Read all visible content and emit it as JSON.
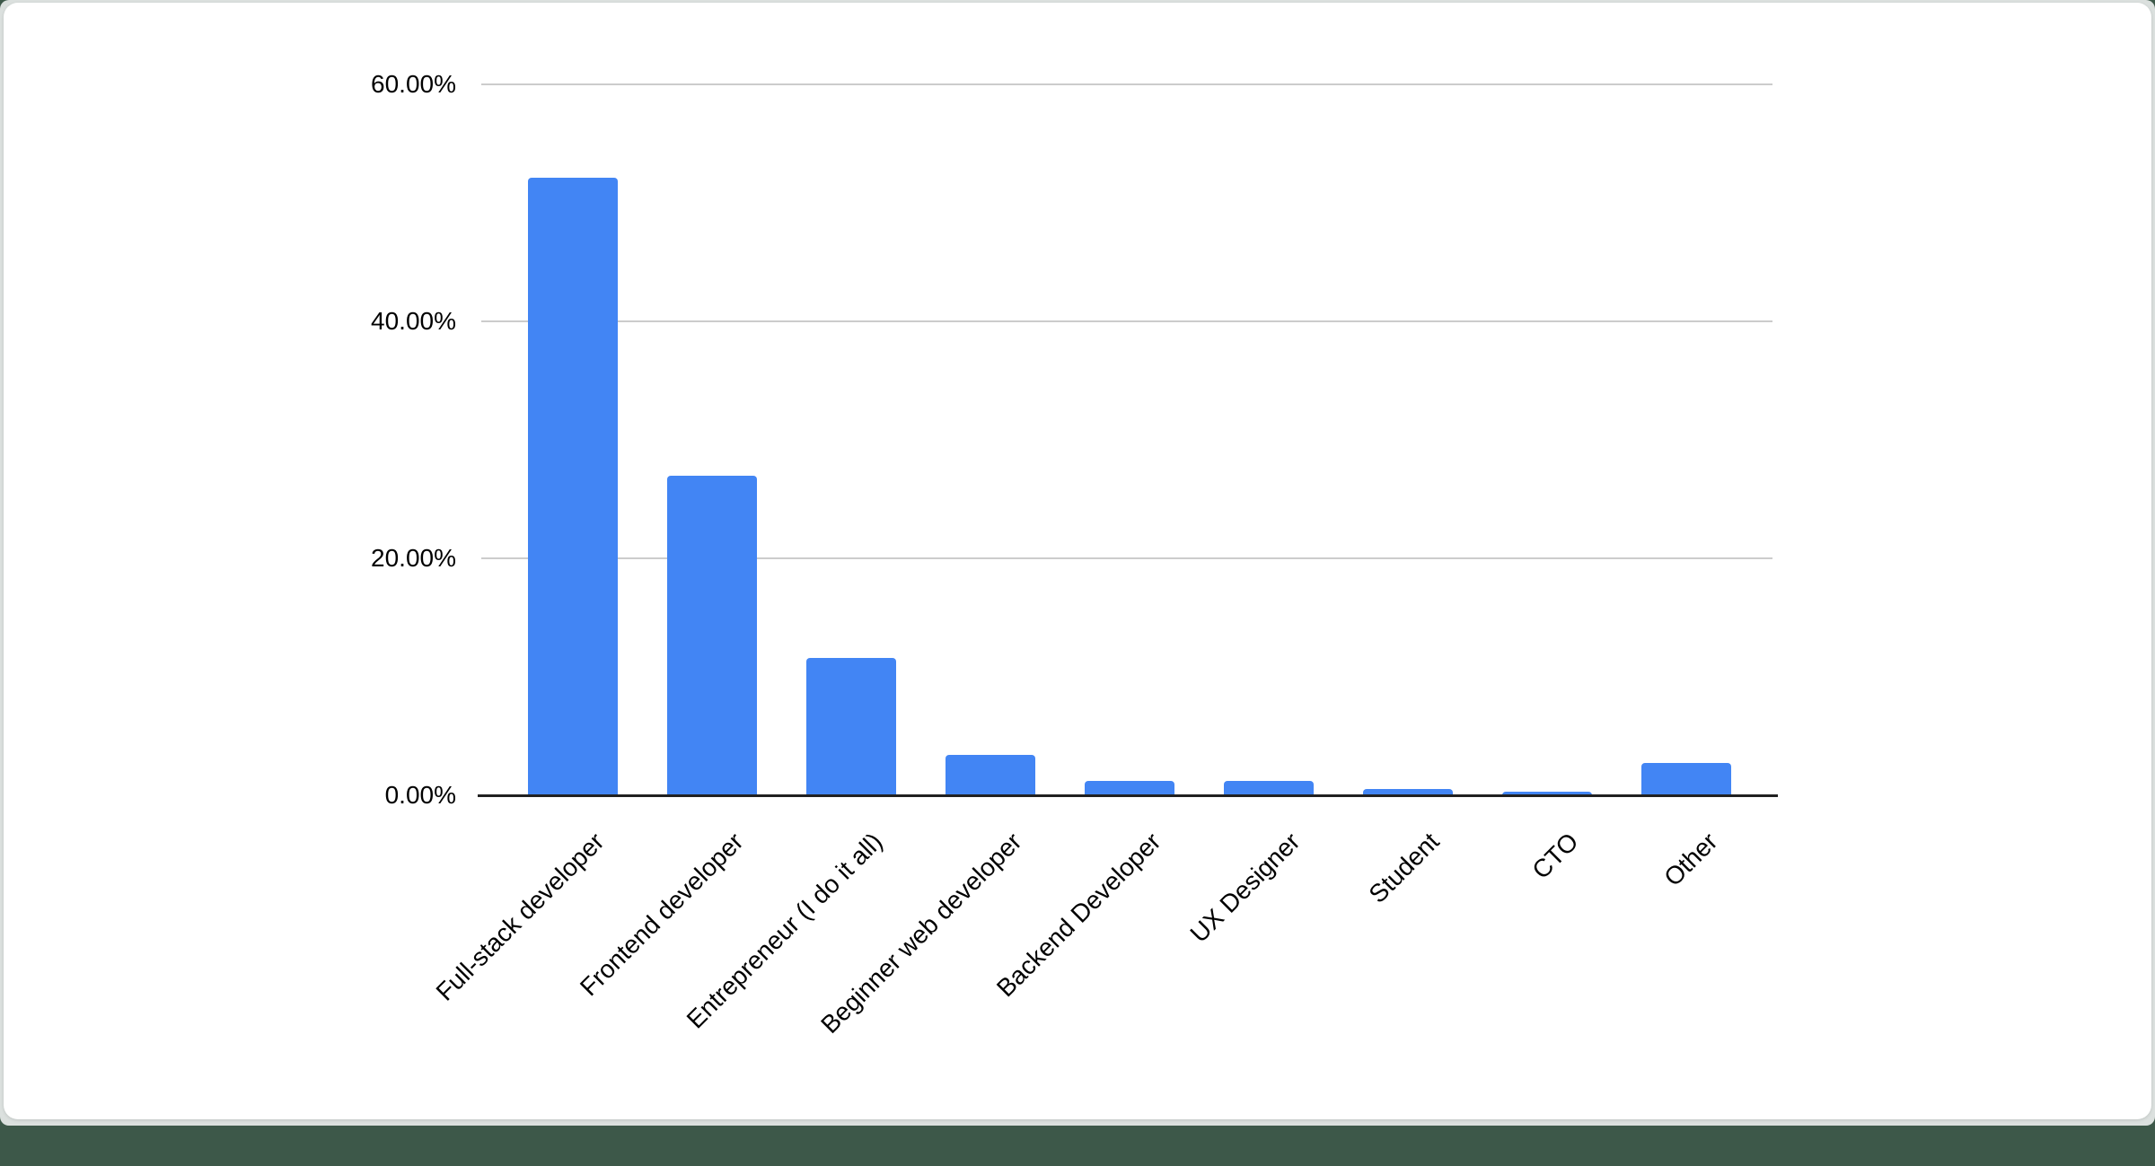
{
  "page": {
    "background_color": "#3d5849",
    "frame_color": "#dbe0de",
    "card_color": "#ffffff"
  },
  "chart_data": {
    "type": "bar",
    "title": "",
    "xlabel": "",
    "ylabel": "",
    "categories": [
      "Full-stack developer",
      "Frontend developer",
      "Entrepreneur (I do it all)",
      "Beginner web developer",
      "Backend Developer",
      "UX Designer",
      "Student",
      "CTO",
      "Other"
    ],
    "values": [
      52.1,
      27.0,
      11.6,
      3.4,
      1.2,
      1.2,
      0.5,
      0.3,
      2.7
    ],
    "value_unit": "%",
    "ylim": [
      0,
      60
    ],
    "yticks": [
      {
        "value": 60,
        "label": "60.00%"
      },
      {
        "value": 40,
        "label": "40.00%"
      },
      {
        "value": 20,
        "label": "20.00%"
      },
      {
        "value": 0,
        "label": "0.00%"
      }
    ],
    "grid": "horizontal",
    "legend": "none",
    "x_label_rotation_deg": 45,
    "bar_color": "#4285f4",
    "gridline_color": "#cccccc",
    "axis_line_color": "#212121",
    "text_color": "#000000"
  }
}
